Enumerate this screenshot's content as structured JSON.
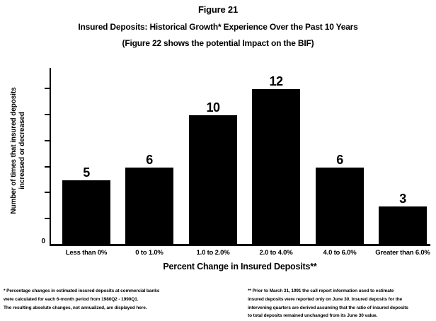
{
  "figure": {
    "number": "Figure 21",
    "heading": "Insured Deposits: Historical Growth* Experience Over the Past 10 Years",
    "subheading": "(Figure 22 shows the potential Impact on the BIF)"
  },
  "chart_data": {
    "type": "bar",
    "categories": [
      "Less than 0%",
      "0 to 1.0%",
      "1.0 to 2.0%",
      "2.0 to 4.0%",
      "4.0 to 6.0%",
      "Greater than 6.0%"
    ],
    "values": [
      5,
      6,
      10,
      12,
      6,
      3
    ],
    "title": "Figure 21",
    "xlabel": "Percent Change in Insured Deposits**",
    "ylabel": "Number of times that insured deposits increased or decreased",
    "ylim": [
      0,
      13.7
    ],
    "y_tick_interval": 2,
    "y_tick_labels_shown": [
      "0"
    ],
    "data_labels_shown": true,
    "grid": false,
    "legend": false,
    "bar_color": "#000000"
  },
  "axis": {
    "y_label_line1": "Number of times that insured deposits",
    "y_label_line2": "increased or decreased",
    "origin_label": "0",
    "x_title": "Percent Change in Insured Deposits**"
  },
  "footnotes": {
    "left": [
      "* Percentage changes in estimated insured deposits at commercial banks",
      "were calculated for each 6-month period from 1980Q2 - 1990Q1.",
      "The resulting absolute changes, not annualized, are displayed here."
    ],
    "right": [
      "** Prior to March 31, 1991 the call report information used to estimate",
      "insured deposits were reported only on June 30. Insured deposits for the",
      "intervening quarters are derived assuming that the ratio of insured deposits",
      "to total deposits remained unchanged from its June 30 value."
    ]
  },
  "colors": {
    "background": "#ffffff",
    "bar": "#000000",
    "text": "#000000"
  }
}
